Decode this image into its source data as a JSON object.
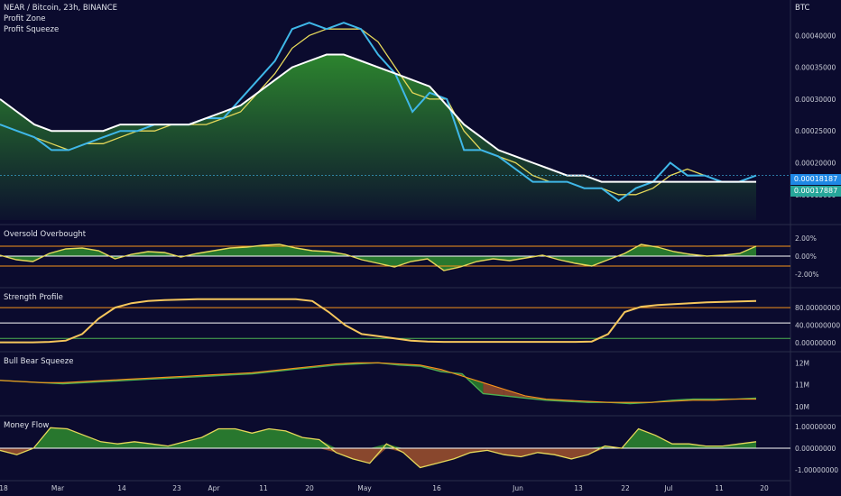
{
  "header": {
    "symbol_line": "NEAR / Bitcoin, 23h, BINANCE",
    "indicator_1": "Profit Zone",
    "indicator_2": "Profit Squeeze",
    "currency": "BTC"
  },
  "colors": {
    "background": "#0b0b2e",
    "price_line": "#3fb7e8",
    "fast_ma": "#e6d85a",
    "slow_ma": "#ffffff",
    "bull_fill": "#2e8b2e",
    "bear_fill": "#a0522d",
    "orange": "#f7931a",
    "green_line": "#4caf50",
    "badge_1": "#1e88e5",
    "badge_2": "#26a69a"
  },
  "price_badges": [
    "0.00018187",
    "0.00017887"
  ],
  "x_ticks": [
    "18",
    "Mar",
    "14",
    "23",
    "Apr",
    "11",
    "20",
    "May",
    "16",
    "Jun",
    "13",
    "22",
    "Jul",
    "11",
    "20"
  ],
  "chart_data": [
    {
      "type": "line",
      "pane": "price",
      "title": "NEAR / Bitcoin, 23h, BINANCE",
      "ylabel": "BTC",
      "y_ticks": [
        "0.00040000",
        "0.00035000",
        "0.00030000",
        "0.00025000",
        "0.00020000",
        "0.00015000"
      ],
      "ylim": [
        0.00011,
        0.00045
      ],
      "series": [
        {
          "name": "price",
          "values": [
            0.00026,
            0.00025,
            0.00024,
            0.00022,
            0.00022,
            0.00023,
            0.00024,
            0.00025,
            0.00025,
            0.00026,
            0.00026,
            0.00026,
            0.00027,
            0.00027,
            0.0003,
            0.00033,
            0.00036,
            0.00041,
            0.00042,
            0.00041,
            0.00042,
            0.00041,
            0.00037,
            0.00034,
            0.00028,
            0.00031,
            0.0003,
            0.00022,
            0.00022,
            0.00021,
            0.00019,
            0.00017,
            0.00017,
            0.00017,
            0.00016,
            0.00016,
            0.00014,
            0.00016,
            0.00017,
            0.0002,
            0.00018,
            0.00018,
            0.00017,
            0.00017,
            0.00018
          ]
        },
        {
          "name": "fast_ma",
          "values": [
            0.00026,
            0.00025,
            0.00024,
            0.00023,
            0.00022,
            0.00023,
            0.00023,
            0.00024,
            0.00025,
            0.00025,
            0.00026,
            0.00026,
            0.00026,
            0.00027,
            0.00028,
            0.00031,
            0.00034,
            0.00038,
            0.0004,
            0.00041,
            0.00041,
            0.00041,
            0.00039,
            0.00035,
            0.00031,
            0.0003,
            0.0003,
            0.00025,
            0.00022,
            0.00021,
            0.0002,
            0.00018,
            0.00017,
            0.00017,
            0.00016,
            0.00016,
            0.00015,
            0.00015,
            0.00016,
            0.00018,
            0.00019,
            0.00018,
            0.00017,
            0.00017,
            0.00017
          ]
        },
        {
          "name": "slow_ma",
          "values": [
            0.0003,
            0.00028,
            0.00026,
            0.00025,
            0.00025,
            0.00025,
            0.00025,
            0.00026,
            0.00026,
            0.00026,
            0.00026,
            0.00026,
            0.00027,
            0.00028,
            0.00029,
            0.00031,
            0.00033,
            0.00035,
            0.00036,
            0.00037,
            0.00037,
            0.00036,
            0.00035,
            0.00034,
            0.00033,
            0.00032,
            0.00029,
            0.00026,
            0.00024,
            0.00022,
            0.00021,
            0.0002,
            0.00019,
            0.00018,
            0.00018,
            0.00017,
            0.00017,
            0.00017,
            0.00017,
            0.00017,
            0.00017,
            0.00017,
            0.00017,
            0.00017,
            0.00017
          ]
        }
      ]
    },
    {
      "type": "line",
      "pane": "oscillator",
      "title": "Oversold Overbought",
      "y_ticks": [
        "2.00%",
        "0.00%",
        "-2.00%"
      ],
      "ylim": [
        -3,
        3
      ],
      "levels": [
        1.1,
        0,
        -1.1
      ],
      "series": [
        {
          "name": "oscillator",
          "values": [
            0.1,
            -0.4,
            -0.6,
            0.3,
            0.8,
            0.9,
            0.6,
            -0.3,
            0.2,
            0.5,
            0.4,
            -0.1,
            0.3,
            0.6,
            0.9,
            1.0,
            1.2,
            1.3,
            0.9,
            0.6,
            0.5,
            0.2,
            -0.4,
            -0.8,
            -1.2,
            -0.6,
            -0.3,
            -1.6,
            -1.2,
            -0.6,
            -0.3,
            -0.5,
            -0.2,
            0.1,
            -0.4,
            -0.8,
            -1.1,
            -0.4,
            0.3,
            1.3,
            1.0,
            0.5,
            0.2,
            0.0,
            0.1,
            0.3,
            1.1
          ]
        }
      ]
    },
    {
      "type": "line",
      "pane": "strength",
      "title": "Strength Profile",
      "y_ticks": [
        "80.00000000",
        "40.00000000",
        "0.00000000"
      ],
      "ylim": [
        -10,
        115
      ],
      "levels": [
        80,
        45,
        10
      ],
      "series": [
        {
          "name": "strength",
          "values": [
            1,
            1,
            1,
            2,
            5,
            20,
            55,
            80,
            90,
            95,
            97,
            98,
            99,
            99,
            99,
            99,
            99,
            99,
            99,
            95,
            70,
            40,
            20,
            15,
            10,
            5,
            3,
            2,
            2,
            2,
            2,
            2,
            2,
            2,
            2,
            2,
            3,
            20,
            70,
            82,
            86,
            88,
            90,
            92,
            93,
            94,
            95
          ]
        }
      ]
    },
    {
      "type": "area",
      "pane": "squeeze",
      "title": "Bull Bear Squeeze",
      "y_ticks": [
        "12M",
        "11M",
        "10M"
      ],
      "ylim": [
        9.8,
        12.3
      ],
      "series": [
        {
          "name": "fast",
          "values": [
            11.2,
            11.15,
            11.1,
            11.05,
            11.1,
            11.15,
            11.2,
            11.25,
            11.3,
            11.35,
            11.4,
            11.45,
            11.5,
            11.6,
            11.7,
            11.8,
            11.9,
            11.95,
            12.0,
            11.9,
            11.85,
            11.6,
            11.5,
            10.6,
            10.5,
            10.4,
            10.3,
            10.25,
            10.2,
            10.2,
            10.15,
            10.2,
            10.3,
            10.35,
            10.35,
            10.35,
            10.4
          ]
        },
        {
          "name": "slow",
          "values": [
            11.2,
            11.15,
            11.1,
            11.1,
            11.15,
            11.2,
            11.25,
            11.3,
            11.35,
            11.4,
            11.45,
            11.5,
            11.55,
            11.65,
            11.75,
            11.85,
            11.95,
            12.0,
            12.0,
            11.95,
            11.9,
            11.7,
            11.4,
            11.1,
            10.8,
            10.5,
            10.35,
            10.3,
            10.25,
            10.2,
            10.2,
            10.2,
            10.25,
            10.3,
            10.3,
            10.35,
            10.35
          ]
        }
      ]
    },
    {
      "type": "line",
      "pane": "money_flow",
      "title": "Money Flow",
      "y_ticks": [
        "1.00000000",
        "0.00000000",
        "-1.00000000"
      ],
      "ylim": [
        -1.3,
        1.3
      ],
      "series": [
        {
          "name": "money_flow",
          "values": [
            -0.1,
            -0.3,
            0.0,
            0.95,
            0.9,
            0.6,
            0.3,
            0.2,
            0.3,
            0.2,
            0.1,
            0.3,
            0.5,
            0.9,
            0.9,
            0.7,
            0.9,
            0.8,
            0.5,
            0.4,
            -0.2,
            -0.5,
            -0.7,
            0.2,
            -0.2,
            -0.9,
            -0.7,
            -0.5,
            -0.2,
            -0.1,
            -0.3,
            -0.4,
            -0.2,
            -0.3,
            -0.5,
            -0.3,
            0.1,
            0.0,
            0.9,
            0.6,
            0.2,
            0.2,
            0.1,
            0.1,
            0.2,
            0.3
          ]
        }
      ]
    }
  ]
}
